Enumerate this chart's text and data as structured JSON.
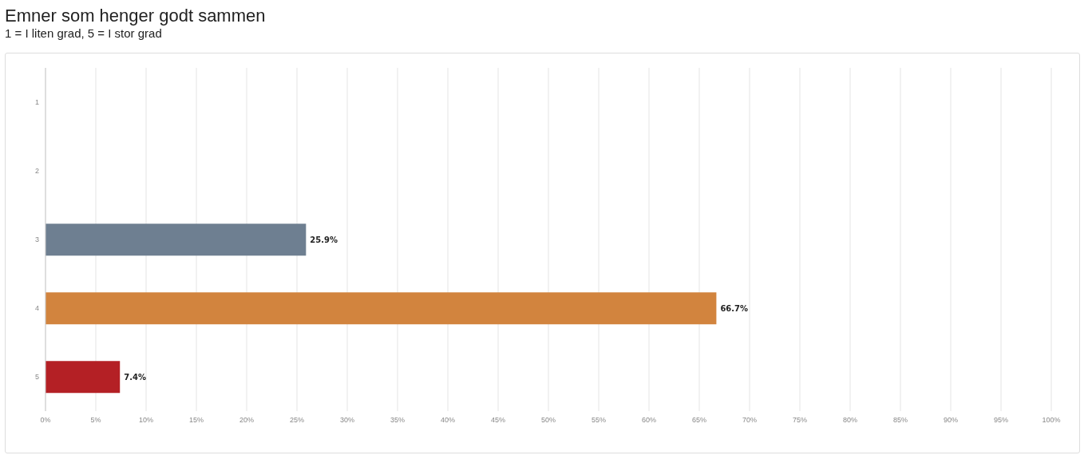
{
  "chart_data": {
    "type": "bar",
    "orientation": "horizontal",
    "title": "Emner som henger godt sammen",
    "subtitle": "1 = I liten grad, 5 = I stor grad",
    "categories": [
      "1",
      "2",
      "3",
      "4",
      "5"
    ],
    "values": [
      null,
      null,
      25.9,
      66.7,
      7.4
    ],
    "colors": [
      "#6e7f91",
      "#6e7f91",
      "#6e7f91",
      "#d2843e",
      "#b42025"
    ],
    "value_labels": [
      null,
      null,
      "25.9%",
      "66.7%",
      "7.4%"
    ],
    "xlim": [
      0,
      100
    ],
    "xticks": [
      {
        "value": 0,
        "label": "0%"
      },
      {
        "value": 5,
        "label": "5%"
      },
      {
        "value": 10,
        "label": "10%"
      },
      {
        "value": 15,
        "label": "15%"
      },
      {
        "value": 20,
        "label": "20%"
      },
      {
        "value": 25,
        "label": "25%"
      },
      {
        "value": 30,
        "label": "30%"
      },
      {
        "value": 35,
        "label": "35%"
      },
      {
        "value": 40,
        "label": "40%"
      },
      {
        "value": 45,
        "label": "45%"
      },
      {
        "value": 50,
        "label": "50%"
      },
      {
        "value": 55,
        "label": "55%"
      },
      {
        "value": 60,
        "label": "60%"
      },
      {
        "value": 65,
        "label": "65%"
      },
      {
        "value": 70,
        "label": "70%"
      },
      {
        "value": 75,
        "label": "75%"
      },
      {
        "value": 80,
        "label": "80%"
      },
      {
        "value": 85,
        "label": "85%"
      },
      {
        "value": 90,
        "label": "90%"
      },
      {
        "value": 95,
        "label": "95%"
      },
      {
        "value": 100,
        "label": "100%"
      }
    ],
    "grid": "x"
  }
}
